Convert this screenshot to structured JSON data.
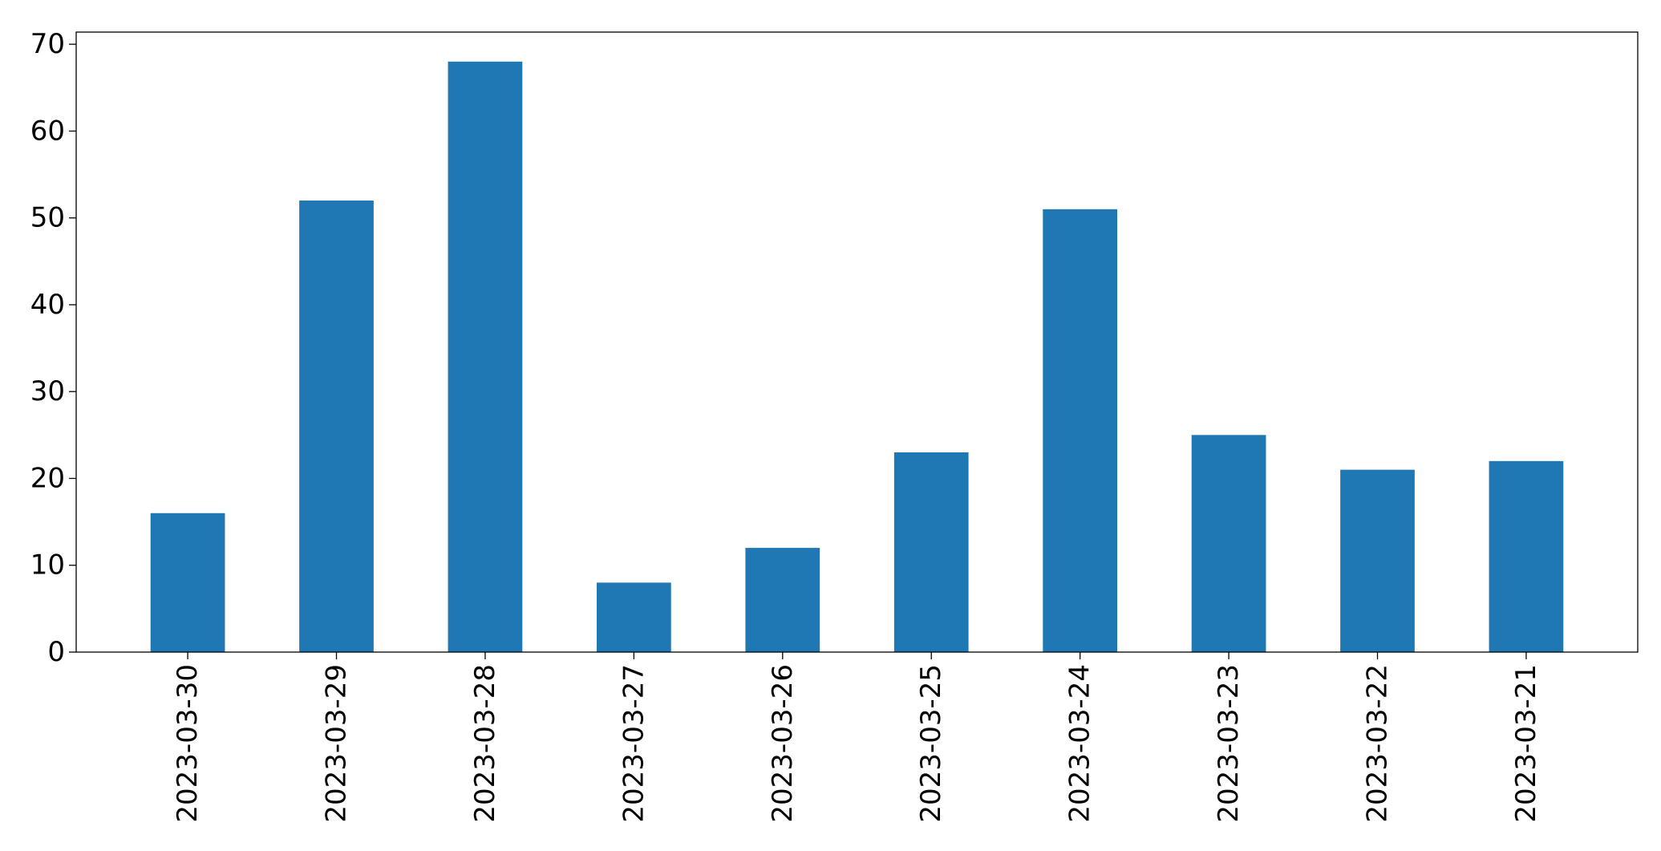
{
  "chart_data": {
    "type": "bar",
    "title": "",
    "xlabel": "",
    "ylabel": "",
    "categories": [
      "2023-03-30",
      "2023-03-29",
      "2023-03-28",
      "2023-03-27",
      "2023-03-26",
      "2023-03-25",
      "2023-03-24",
      "2023-03-23",
      "2023-03-22",
      "2023-03-21"
    ],
    "values": [
      16,
      52,
      68,
      8,
      12,
      23,
      51,
      25,
      21,
      22
    ],
    "ylim": [
      0,
      71.4
    ],
    "yticks": [
      0,
      10,
      20,
      30,
      40,
      50,
      60,
      70
    ],
    "x_tick_rotation": "vertical",
    "bar_color": "#1f77b4",
    "grid": false,
    "legend": "none"
  }
}
